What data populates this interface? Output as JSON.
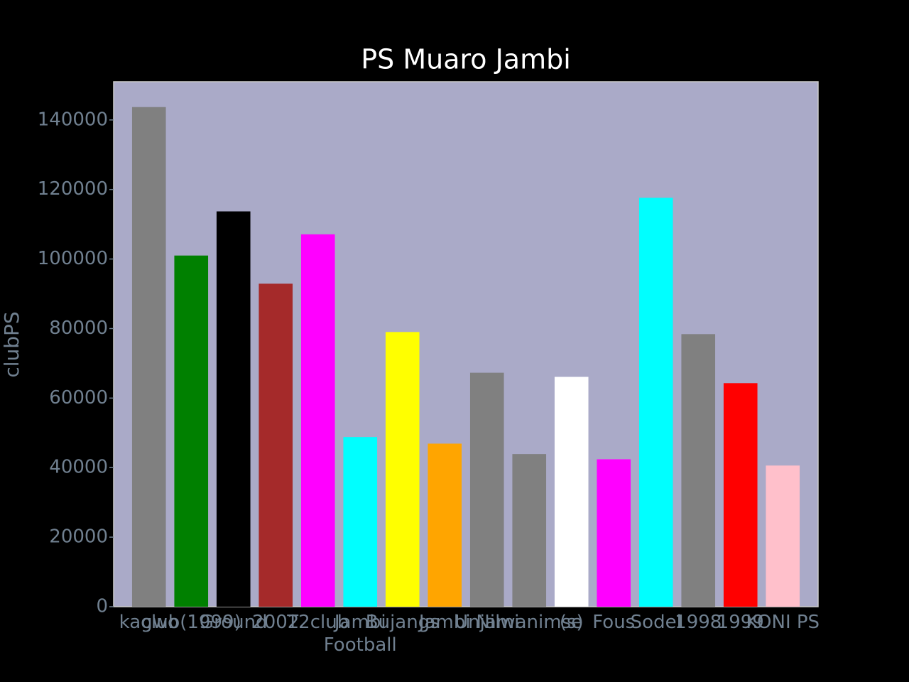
{
  "chart_data": {
    "type": "bar",
    "title": "PS Muaro Jambi",
    "ylabel": "clubPS",
    "categories": [
      "kagwo",
      "club(1999)",
      "Ground",
      "2002",
      "T2club",
      "Jambi\nFootball",
      "Bujangs",
      "Jambi",
      "Unjami",
      "Nilwanimse",
      "(s)",
      "Fous",
      "Sodel",
      "1998",
      "1999",
      "KONI PS"
    ],
    "values": [
      143700,
      101000,
      113700,
      92900,
      107100,
      48800,
      79000,
      46900,
      67300,
      43900,
      66100,
      42400,
      117600,
      78400,
      64300,
      40600
    ],
    "colors": [
      "#808080",
      "#008000",
      "#000000",
      "#a52a2a",
      "#ff00ff",
      "#00ffff",
      "#ffff00",
      "#ffa500",
      "#808080",
      "#808080",
      "#ffffff",
      "#ff00ff",
      "#00ffff",
      "#808080",
      "#ff0000",
      "#ffc0cb"
    ],
    "ylim": [
      0,
      151000
    ],
    "yticks": [
      0,
      20000,
      40000,
      60000,
      80000,
      100000,
      120000,
      140000
    ],
    "grid": false
  }
}
